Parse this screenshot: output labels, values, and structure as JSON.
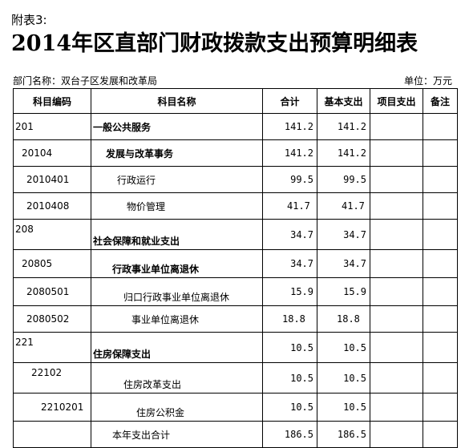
{
  "header": {
    "appendix": "附表3:",
    "title": "2014年区直部门财政拨款支出预算明细表",
    "dept": "部门名称：双台子区发展和改革局",
    "unit": "单位：万元"
  },
  "columns": {
    "code": "科目编码",
    "name": "科目名称",
    "total": "合计",
    "basic": "基本支出",
    "project": "项目支出",
    "note": "备注"
  },
  "rows": [
    {
      "code": "201",
      "name": "一般公共服务",
      "total": "141.2",
      "basic": "141.2"
    },
    {
      "code": "20104",
      "name": "发展与改革事务",
      "total": "141.2",
      "basic": "141.2"
    },
    {
      "code": "2010401",
      "name": "行政运行",
      "total": "99.5",
      "basic": "99.5"
    },
    {
      "code": "2010408",
      "name": "物价管理",
      "total": "41.7",
      "basic": "41.7"
    },
    {
      "code": "208",
      "name": "社会保障和就业支出",
      "total": "34.7",
      "basic": "34.7"
    },
    {
      "code": "20805",
      "name": "行政事业单位离退休",
      "total": "34.7",
      "basic": "34.7"
    },
    {
      "code": "2080501",
      "name": "归口行政事业单位离退休",
      "total": "15.9",
      "basic": "15.9"
    },
    {
      "code": "2080502",
      "name": "事业单位离退休",
      "total": "18.8",
      "basic": "18.8"
    },
    {
      "code": "221",
      "name": "住房保障支出",
      "total": "10.5",
      "basic": "10.5"
    },
    {
      "code": "22102",
      "name": "住房改革支出",
      "total": "10.5",
      "basic": "10.5"
    },
    {
      "code": "2210201",
      "name": "住房公积金",
      "total": "10.5",
      "basic": "10.5"
    },
    {
      "code": "",
      "name": "本年支出合计",
      "total": "186.5",
      "basic": "186.5"
    }
  ]
}
